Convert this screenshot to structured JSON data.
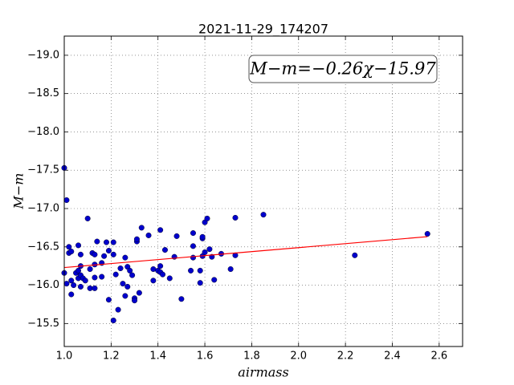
{
  "chart_data": {
    "type": "scatter",
    "title": "2021-11-29_174207",
    "x_label": "airmass",
    "y_label": "M−m",
    "annotation": "M−m=−0.26χ−15.97",
    "xlim": [
      1.0,
      2.7
    ],
    "ylim": [
      -19.25,
      -15.2
    ],
    "y_inverted": true,
    "grid": true,
    "xticks": [
      {
        "value": 1.0,
        "label": "1.0"
      },
      {
        "value": 1.2,
        "label": "1.2"
      },
      {
        "value": 1.4,
        "label": "1.4"
      },
      {
        "value": 1.6,
        "label": "1.6"
      },
      {
        "value": 1.8,
        "label": "1.8"
      },
      {
        "value": 2.0,
        "label": "2.0"
      },
      {
        "value": 2.2,
        "label": "2.2"
      },
      {
        "value": 2.4,
        "label": "2.4"
      },
      {
        "value": 2.6,
        "label": "2.6"
      }
    ],
    "yticks": [
      {
        "value": -15.5,
        "label": "−15.5"
      },
      {
        "value": -16.0,
        "label": "−16.0"
      },
      {
        "value": -16.5,
        "label": "−16.5"
      },
      {
        "value": -17.0,
        "label": "−17.0"
      },
      {
        "value": -17.5,
        "label": "−17.5"
      },
      {
        "value": -18.0,
        "label": "−18.0"
      },
      {
        "value": -18.5,
        "label": "−18.5"
      },
      {
        "value": -19.0,
        "label": "−19.0"
      }
    ],
    "series": [
      {
        "type": "scatter",
        "color": "#0000cc",
        "x": [
          1.0,
          1.01,
          1.0,
          1.01,
          1.02,
          1.02,
          1.03,
          1.03,
          1.03,
          1.04,
          1.05,
          1.06,
          1.06,
          1.07,
          1.07,
          1.07,
          1.06,
          1.07,
          1.08,
          1.09,
          1.1,
          1.11,
          1.11,
          1.12,
          1.13,
          1.13,
          1.13,
          1.13,
          1.14,
          1.16,
          1.16,
          1.17,
          1.18,
          1.19,
          1.19,
          1.21,
          1.21,
          1.21,
          1.22,
          1.23,
          1.24,
          1.25,
          1.26,
          1.26,
          1.27,
          1.27,
          1.28,
          1.29,
          1.3,
          1.3,
          1.31,
          1.31,
          1.32,
          1.33,
          1.36,
          1.38,
          1.38,
          1.4,
          1.41,
          1.41,
          1.42,
          1.41,
          1.43,
          1.45,
          1.47,
          1.48,
          1.5,
          1.54,
          1.55,
          1.55,
          1.55,
          1.58,
          1.58,
          1.59,
          1.59,
          1.59,
          1.6,
          1.6,
          1.61,
          1.62,
          1.63,
          1.64,
          1.67,
          1.71,
          1.73,
          1.73,
          1.85,
          2.24,
          2.55
        ],
        "values": [
          -16.16,
          -17.11,
          -17.53,
          -16.02,
          -16.42,
          -16.5,
          -15.88,
          -16.06,
          -16.44,
          -16.0,
          -16.16,
          -16.09,
          -16.19,
          -15.98,
          -16.25,
          -16.4,
          -16.52,
          -16.13,
          -16.09,
          -16.06,
          -16.87,
          -16.21,
          -15.96,
          -16.42,
          -15.96,
          -16.1,
          -16.27,
          -16.4,
          -16.57,
          -16.11,
          -16.29,
          -16.38,
          -16.56,
          -15.81,
          -16.45,
          -16.4,
          -16.56,
          -15.54,
          -16.14,
          -15.68,
          -16.22,
          -16.02,
          -15.86,
          -16.36,
          -16.24,
          -15.98,
          -16.19,
          -16.13,
          -15.83,
          -15.8,
          -16.57,
          -16.6,
          -15.9,
          -16.75,
          -16.65,
          -16.06,
          -16.21,
          -16.19,
          -16.25,
          -16.17,
          -16.14,
          -16.72,
          -16.46,
          -16.09,
          -16.37,
          -16.64,
          -15.82,
          -16.19,
          -16.51,
          -16.36,
          -16.68,
          -16.03,
          -16.19,
          -16.38,
          -16.61,
          -16.63,
          -16.43,
          -16.82,
          -16.87,
          -16.47,
          -16.37,
          -16.07,
          -16.41,
          -16.21,
          -16.39,
          -16.88,
          -16.92,
          -16.39,
          -16.67
        ]
      },
      {
        "type": "line",
        "color": "#ff0000",
        "x": [
          1.0,
          2.55
        ],
        "values": [
          -16.23,
          -16.633
        ]
      }
    ]
  }
}
